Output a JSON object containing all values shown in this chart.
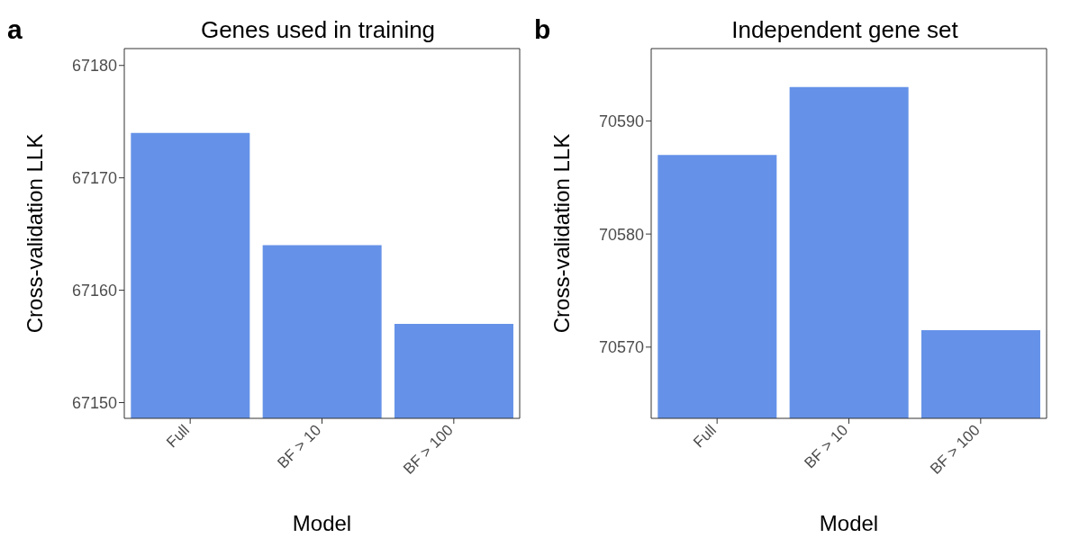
{
  "chart_data": [
    {
      "type": "bar",
      "title": "Genes used in training",
      "xlabel": "Model",
      "ylabel": "Cross-validation LLK",
      "annotations": [
        "a"
      ],
      "categories": [
        "Full",
        "BF > 10",
        "BF > 100"
      ],
      "values": [
        67174,
        67164,
        67157
      ],
      "color": "#6592e8",
      "ylim": [
        67148.6,
        67181.5
      ],
      "yticks": [
        67150,
        67160,
        67170,
        67180
      ],
      "grid": false,
      "legend": false
    },
    {
      "type": "bar",
      "title": "Independent gene set",
      "xlabel": "Model",
      "ylabel": "Cross-validation LLK",
      "annotations": [
        "b"
      ],
      "categories": [
        "Full",
        "BF > 10",
        "BF > 100"
      ],
      "values": [
        70587,
        70593,
        70571.5
      ],
      "color": "#6592e8",
      "ylim": [
        70563.7,
        70596.4
      ],
      "yticks": [
        70570,
        70580,
        70590
      ],
      "grid": false,
      "legend": false
    }
  ]
}
